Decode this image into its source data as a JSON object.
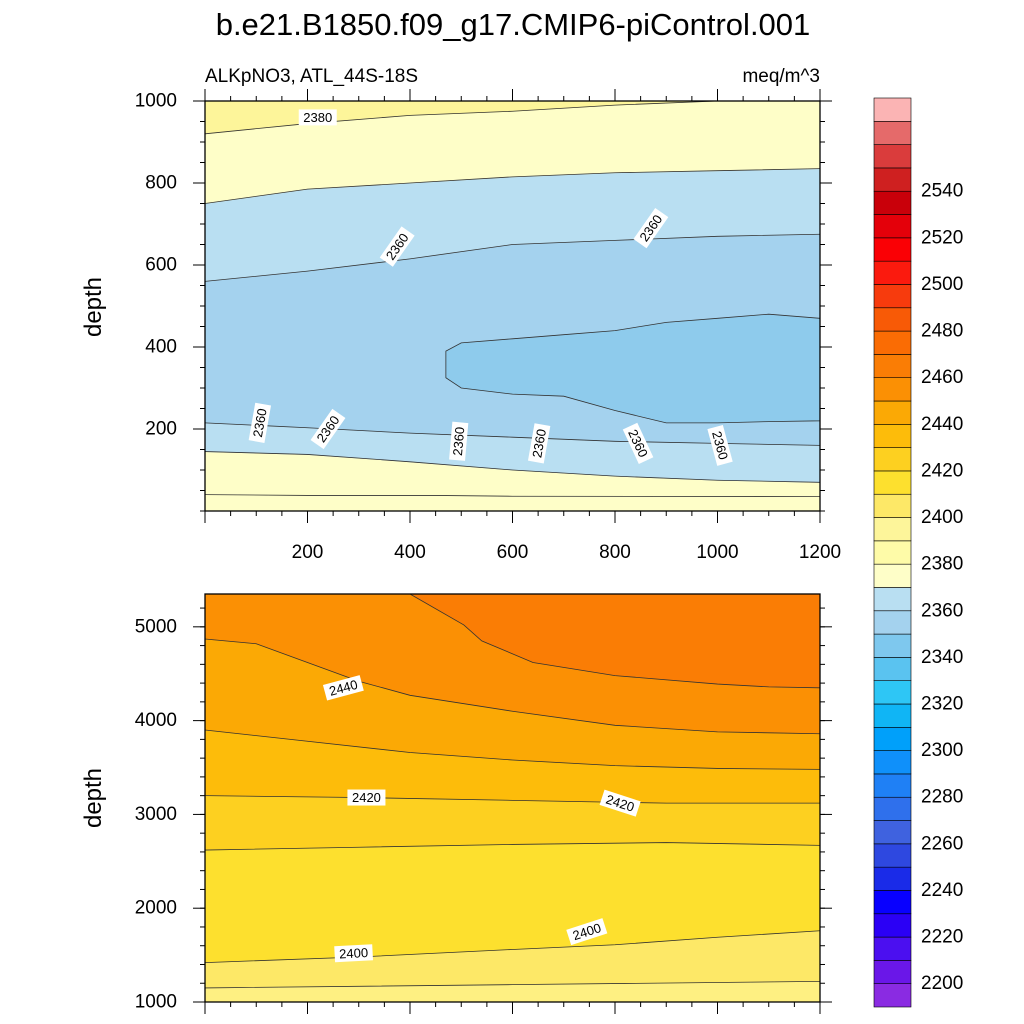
{
  "chart_data": {
    "type": "heatmap",
    "title": "b.e21.B1850.f09_g17.CMIP6-piControl.001",
    "left_subtitle": "ALKpNO3, ATL_44S-18S",
    "right_subtitle": "meq/m^3",
    "panels": [
      {
        "name": "upper",
        "ylabel": "depth",
        "xlim": [
          0,
          1200
        ],
        "ylim": [
          1000,
          0
        ],
        "x_ticks": [
          200,
          400,
          600,
          800,
          1000,
          1200
        ],
        "y_ticks": [
          200,
          400,
          600,
          800,
          1000
        ],
        "bands": [
          {
            "from": [
              [
                0,
                0
              ],
              [
                1200,
                0
              ]
            ],
            "to": [
              [
                0,
                40
              ],
              [
                200,
                38
              ],
              [
                450,
                38
              ],
              [
                600,
                36
              ],
              [
                1200,
                35
              ]
            ],
            "color": "#fefec8"
          },
          {
            "from": [
              [
                0,
                40
              ],
              [
                200,
                38
              ],
              [
                450,
                38
              ],
              [
                600,
                36
              ],
              [
                1200,
                35
              ]
            ],
            "to": [
              [
                0,
                145
              ],
              [
                200,
                138
              ],
              [
                400,
                120
              ],
              [
                600,
                100
              ],
              [
                800,
                85
              ],
              [
                1000,
                75
              ],
              [
                1200,
                70
              ]
            ],
            "color": "#fefec8"
          },
          {
            "from": [
              [
                0,
                145
              ],
              [
                200,
                138
              ],
              [
                400,
                120
              ],
              [
                600,
                100
              ],
              [
                800,
                85
              ],
              [
                1000,
                75
              ],
              [
                1200,
                70
              ]
            ],
            "to": [
              [
                0,
                215
              ],
              [
                200,
                203
              ],
              [
                400,
                190
              ],
              [
                600,
                180
              ],
              [
                800,
                170
              ],
              [
                1000,
                165
              ],
              [
                1200,
                160
              ]
            ],
            "color": "#b9dff2"
          },
          {
            "from": [
              [
                0,
                215
              ],
              [
                200,
                203
              ],
              [
                400,
                190
              ],
              [
                600,
                180
              ],
              [
                800,
                170
              ],
              [
                1000,
                165
              ],
              [
                1200,
                160
              ]
            ],
            "to": [
              [
                0,
                560
              ],
              [
                200,
                585
              ],
              [
                400,
                615
              ],
              [
                600,
                650
              ],
              [
                800,
                660
              ],
              [
                1000,
                670
              ],
              [
                1200,
                675
              ]
            ],
            "color": "#a4d2ee"
          },
          {
            "from": [
              [
                0,
                560
              ],
              [
                200,
                585
              ],
              [
                400,
                615
              ],
              [
                600,
                650
              ],
              [
                800,
                660
              ],
              [
                1000,
                670
              ],
              [
                1200,
                675
              ]
            ],
            "to": [
              [
                0,
                750
              ],
              [
                200,
                785
              ],
              [
                400,
                800
              ],
              [
                600,
                815
              ],
              [
                800,
                825
              ],
              [
                1000,
                830
              ],
              [
                1200,
                835
              ]
            ],
            "color": "#b9dff2"
          },
          {
            "from": [
              [
                0,
                750
              ],
              [
                200,
                785
              ],
              [
                400,
                800
              ],
              [
                600,
                815
              ],
              [
                800,
                825
              ],
              [
                1000,
                830
              ],
              [
                1200,
                835
              ]
            ],
            "to": [
              [
                0,
                920
              ],
              [
                200,
                945
              ],
              [
                400,
                965
              ],
              [
                600,
                975
              ],
              [
                800,
                990
              ],
              [
                1000,
                1000
              ],
              [
                1200,
                1000
              ]
            ],
            "color": "#fefec8"
          },
          {
            "from": [
              [
                0,
                920
              ],
              [
                200,
                945
              ],
              [
                400,
                965
              ],
              [
                600,
                975
              ],
              [
                800,
                990
              ],
              [
                1000,
                1000
              ],
              [
                1200,
                1000
              ]
            ],
            "to": [
              [
                0,
                1000
              ],
              [
                1200,
                1000
              ]
            ],
            "color": "#fdf59a"
          }
        ],
        "patches": [
          {
            "points": [
              [
                470,
                325
              ],
              [
                500,
                300
              ],
              [
                600,
                285
              ],
              [
                700,
                280
              ],
              [
                800,
                245
              ],
              [
                900,
                215
              ],
              [
                1000,
                215
              ],
              [
                1100,
                218
              ],
              [
                1200,
                220
              ],
              [
                1200,
                470
              ],
              [
                1100,
                480
              ],
              [
                1000,
                470
              ],
              [
                900,
                460
              ],
              [
                800,
                440
              ],
              [
                700,
                430
              ],
              [
                600,
                420
              ],
              [
                500,
                410
              ],
              [
                470,
                390
              ]
            ],
            "color": "#8ecbec"
          }
        ],
        "contour_labels": [
          {
            "x": 107,
            "y": 215,
            "text": "2360",
            "angle": -80
          },
          {
            "x": 240,
            "y": 200,
            "text": "2360",
            "angle": -55
          },
          {
            "x": 495,
            "y": 170,
            "text": "2360",
            "angle": -85
          },
          {
            "x": 652,
            "y": 165,
            "text": "2360",
            "angle": -80
          },
          {
            "x": 845,
            "y": 165,
            "text": "2360",
            "angle": 65
          },
          {
            "x": 1005,
            "y": 160,
            "text": "2360",
            "angle": 75
          },
          {
            "x": 375,
            "y": 645,
            "text": "2360",
            "angle": -55
          },
          {
            "x": 870,
            "y": 690,
            "text": "2360",
            "angle": -55
          },
          {
            "x": 220,
            "y": 960,
            "text": "2380",
            "angle": 0
          }
        ]
      },
      {
        "name": "lower",
        "ylabel": "depth",
        "xlim": [
          0,
          1200
        ],
        "ylim": [
          5350,
          1000
        ],
        "y_ticks": [
          1000,
          2000,
          3000,
          4000,
          5000
        ],
        "bands": [
          {
            "from": [
              [
                0,
                1000
              ],
              [
                1200,
                1000
              ]
            ],
            "to": [
              [
                0,
                1150
              ],
              [
                600,
                1185
              ],
              [
                1200,
                1220
              ]
            ],
            "color": "#fef082"
          },
          {
            "from": [
              [
                0,
                1150
              ],
              [
                600,
                1185
              ],
              [
                1200,
                1220
              ]
            ],
            "to": [
              [
                0,
                1420
              ],
              [
                300,
                1480
              ],
              [
                600,
                1560
              ],
              [
                800,
                1610
              ],
              [
                1000,
                1690
              ],
              [
                1200,
                1760
              ]
            ],
            "color": "#fde867"
          },
          {
            "from": [
              [
                0,
                1420
              ],
              [
                300,
                1480
              ],
              [
                600,
                1560
              ],
              [
                800,
                1610
              ],
              [
                1000,
                1690
              ],
              [
                1200,
                1760
              ]
            ],
            "to": [
              [
                0,
                2620
              ],
              [
                300,
                2650
              ],
              [
                600,
                2680
              ],
              [
                900,
                2700
              ],
              [
                1200,
                2670
              ]
            ],
            "color": "#fde02e"
          },
          {
            "from": [
              [
                0,
                2620
              ],
              [
                300,
                2650
              ],
              [
                600,
                2680
              ],
              [
                900,
                2700
              ],
              [
                1200,
                2670
              ]
            ],
            "to": [
              [
                0,
                3200
              ],
              [
                300,
                3180
              ],
              [
                600,
                3150
              ],
              [
                900,
                3120
              ],
              [
                1200,
                3120
              ]
            ],
            "color": "#fdd020"
          },
          {
            "from": [
              [
                0,
                3200
              ],
              [
                300,
                3180
              ],
              [
                600,
                3150
              ],
              [
                900,
                3120
              ],
              [
                1200,
                3120
              ]
            ],
            "to": [
              [
                0,
                3900
              ],
              [
                200,
                3780
              ],
              [
                400,
                3660
              ],
              [
                600,
                3580
              ],
              [
                800,
                3520
              ],
              [
                1000,
                3490
              ],
              [
                1200,
                3480
              ]
            ],
            "color": "#fdbc0a"
          },
          {
            "from": [
              [
                0,
                3900
              ],
              [
                200,
                3780
              ],
              [
                400,
                3660
              ],
              [
                600,
                3580
              ],
              [
                800,
                3520
              ],
              [
                1000,
                3490
              ],
              [
                1200,
                3480
              ]
            ],
            "to": [
              [
                0,
                4870
              ],
              [
                100,
                4820
              ],
              [
                200,
                4620
              ],
              [
                300,
                4420
              ],
              [
                400,
                4270
              ],
              [
                600,
                4100
              ],
              [
                800,
                3950
              ],
              [
                1000,
                3880
              ],
              [
                1200,
                3860
              ]
            ],
            "color": "#fba905"
          },
          {
            "from": [
              [
                0,
                4870
              ],
              [
                100,
                4820
              ],
              [
                200,
                4620
              ],
              [
                300,
                4420
              ],
              [
                400,
                4270
              ],
              [
                600,
                4100
              ],
              [
                800,
                3950
              ],
              [
                1000,
                3880
              ],
              [
                1200,
                3860
              ]
            ],
            "to": [
              [
                0,
                5350
              ],
              [
                1200,
                5350
              ]
            ],
            "color": "#fb9004"
          }
        ],
        "patches": [
          {
            "points": [
              [
                400,
                5350
              ],
              [
                505,
                5020
              ],
              [
                540,
                4850
              ],
              [
                640,
                4620
              ],
              [
                800,
                4480
              ],
              [
                1000,
                4390
              ],
              [
                1100,
                4360
              ],
              [
                1200,
                4350
              ],
              [
                1200,
                5350
              ]
            ],
            "color": "#fa7d05"
          }
        ],
        "contour_labels": [
          {
            "x": 290,
            "y": 1520,
            "text": "2400",
            "angle": -3
          },
          {
            "x": 745,
            "y": 1750,
            "text": "2400",
            "angle": -18
          },
          {
            "x": 315,
            "y": 3180,
            "text": "2420",
            "angle": 0
          },
          {
            "x": 810,
            "y": 3120,
            "text": "2420",
            "angle": 18
          },
          {
            "x": 270,
            "y": 4350,
            "text": "2440",
            "angle": -15
          }
        ]
      }
    ],
    "colorbar": {
      "colors": [
        "#8a2be2",
        "#6a17e8",
        "#4b0ff0",
        "#2b00f5",
        "#0800ff",
        "#1a2be8",
        "#2e48e0",
        "#3f62df",
        "#2f70ec",
        "#1f80f5",
        "#0f90fa",
        "#00a0fa",
        "#10b5f5",
        "#2ec6f5",
        "#5ac3f0",
        "#7ec8ee",
        "#a4d2ee",
        "#b9dff2",
        "#fefec8",
        "#fefba8",
        "#fdf59a",
        "#fde867",
        "#fde02e",
        "#fdd020",
        "#fdbc0a",
        "#fba905",
        "#fb9004",
        "#fa7d05",
        "#fa6c04",
        "#f85a06",
        "#f73b0d",
        "#fb1a0e",
        "#fa0005",
        "#e4000a",
        "#c9000a",
        "#cf2020",
        "#da3c3c",
        "#e56a6a",
        "#fbb4b4"
      ],
      "labels": [
        "2200",
        "2220",
        "2240",
        "2260",
        "2280",
        "2300",
        "2320",
        "2340",
        "2360",
        "2380",
        "2400",
        "2420",
        "2440",
        "2460",
        "2480",
        "2500",
        "2520",
        "2540"
      ]
    }
  }
}
